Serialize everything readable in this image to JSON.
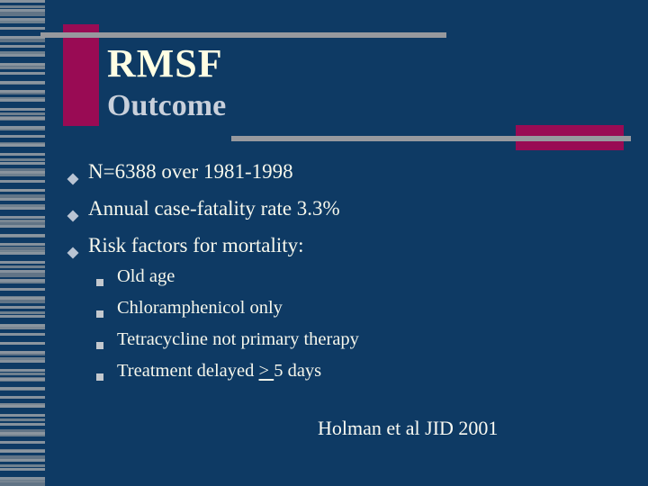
{
  "slide": {
    "title": "RMSF",
    "subtitle": "Outcome",
    "citation": "Holman et al JID 2001"
  },
  "bullets": {
    "main": [
      "N=6388 over 1981-1998",
      "Annual case-fatality rate 3.3%",
      "Risk factors for mortality:"
    ],
    "sub": [
      "Old age",
      "Chloramphenicol only",
      "Tetracycline not primary therapy"
    ],
    "sub_last": {
      "prefix": "Treatment delayed ",
      "underlined": "> ",
      "suffix": "5 days"
    }
  },
  "icons": {
    "main_bullet": "diamond-bullet-icon",
    "sub_bullet": "square-bullet-icon"
  },
  "colors": {
    "background": "#0E3A64",
    "accent_maroon": "#990B54",
    "rule_gray": "#97999E",
    "title_cream": "#FFFFE3",
    "subtitle_silver": "#C9D0DB",
    "body_text": "#F6F7EC",
    "diamond_bullet": "#B9C4D3",
    "square_bullet": "#C3C8CE"
  }
}
